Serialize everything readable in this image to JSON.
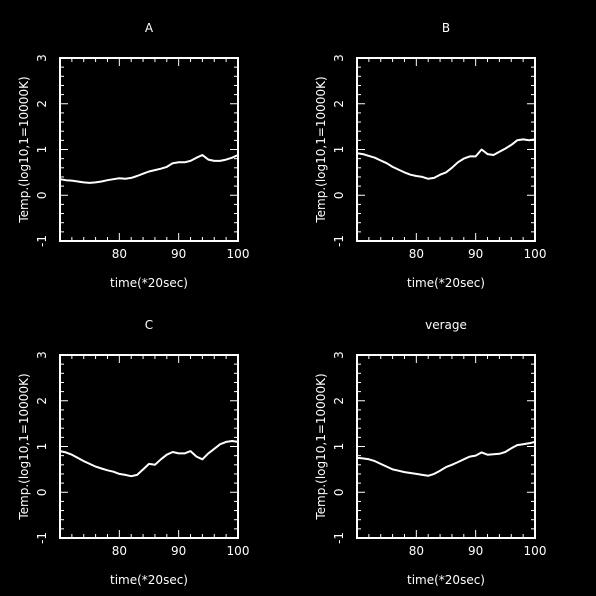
{
  "chart_data": [
    {
      "type": "line",
      "title": "A",
      "xlabel": "time(*20sec)",
      "ylabel": "Temp.(log10,1=10000K)",
      "xlim": [
        70,
        100
      ],
      "ylim": [
        -1,
        3
      ],
      "xticks": [
        80,
        90,
        100
      ],
      "yticks": [
        -1,
        0,
        1,
        2,
        3
      ],
      "colors": {
        "background": "#000000",
        "foreground": "#ffffff"
      },
      "x": [
        70,
        71,
        72,
        73,
        74,
        75,
        76,
        77,
        78,
        79,
        80,
        81,
        82,
        83,
        84,
        85,
        86,
        87,
        88,
        89,
        90,
        91,
        92,
        93,
        94,
        95,
        96,
        97,
        98,
        99,
        100
      ],
      "y": [
        0.35,
        0.33,
        0.32,
        0.3,
        0.28,
        0.27,
        0.28,
        0.3,
        0.33,
        0.35,
        0.37,
        0.36,
        0.38,
        0.42,
        0.47,
        0.52,
        0.55,
        0.58,
        0.62,
        0.7,
        0.72,
        0.72,
        0.75,
        0.82,
        0.88,
        0.78,
        0.75,
        0.75,
        0.78,
        0.82,
        0.88
      ]
    },
    {
      "type": "line",
      "title": "B",
      "xlabel": "time(*20sec)",
      "ylabel": "Temp.(log10,1=10000K)",
      "xlim": [
        70,
        100
      ],
      "ylim": [
        -1,
        3
      ],
      "xticks": [
        80,
        90,
        100
      ],
      "yticks": [
        -1,
        0,
        1,
        2,
        3
      ],
      "colors": {
        "background": "#000000",
        "foreground": "#ffffff"
      },
      "x": [
        70,
        71,
        72,
        73,
        74,
        75,
        76,
        77,
        78,
        79,
        80,
        81,
        82,
        83,
        84,
        85,
        86,
        87,
        88,
        89,
        90,
        91,
        92,
        93,
        94,
        95,
        96,
        97,
        98,
        99,
        100
      ],
      "y": [
        0.92,
        0.9,
        0.86,
        0.82,
        0.76,
        0.7,
        0.62,
        0.56,
        0.5,
        0.45,
        0.42,
        0.4,
        0.36,
        0.38,
        0.45,
        0.5,
        0.6,
        0.72,
        0.8,
        0.85,
        0.85,
        1.0,
        0.9,
        0.88,
        0.95,
        1.02,
        1.1,
        1.2,
        1.22,
        1.2,
        1.22
      ]
    },
    {
      "type": "line",
      "title": "C",
      "xlabel": "time(*20sec)",
      "ylabel": "Temp.(log10,1=10000K)",
      "xlim": [
        70,
        100
      ],
      "ylim": [
        -1,
        3
      ],
      "xticks": [
        80,
        90,
        100
      ],
      "yticks": [
        -1,
        0,
        1,
        2,
        3
      ],
      "colors": {
        "background": "#000000",
        "foreground": "#ffffff"
      },
      "x": [
        70,
        71,
        72,
        73,
        74,
        75,
        76,
        77,
        78,
        79,
        80,
        81,
        82,
        83,
        84,
        85,
        86,
        87,
        88,
        89,
        90,
        91,
        92,
        93,
        94,
        95,
        96,
        97,
        98,
        99,
        100
      ],
      "y": [
        0.9,
        0.87,
        0.82,
        0.75,
        0.68,
        0.62,
        0.56,
        0.52,
        0.48,
        0.45,
        0.4,
        0.38,
        0.35,
        0.38,
        0.5,
        0.62,
        0.6,
        0.72,
        0.82,
        0.88,
        0.85,
        0.85,
        0.9,
        0.78,
        0.72,
        0.85,
        0.95,
        1.05,
        1.1,
        1.12,
        1.1
      ]
    },
    {
      "type": "line",
      "title": "verage",
      "xlabel": "time(*20sec)",
      "ylabel": "Temp.(log10,1=10000K)",
      "xlim": [
        70,
        100
      ],
      "ylim": [
        -1,
        3
      ],
      "xticks": [
        80,
        90,
        100
      ],
      "yticks": [
        -1,
        0,
        1,
        2,
        3
      ],
      "colors": {
        "background": "#000000",
        "foreground": "#ffffff"
      },
      "x": [
        70,
        71,
        72,
        73,
        74,
        75,
        76,
        77,
        78,
        79,
        80,
        81,
        82,
        83,
        84,
        85,
        86,
        87,
        88,
        89,
        90,
        91,
        92,
        93,
        94,
        95,
        96,
        97,
        98,
        99,
        100
      ],
      "y": [
        0.75,
        0.74,
        0.72,
        0.68,
        0.62,
        0.56,
        0.5,
        0.47,
        0.44,
        0.42,
        0.4,
        0.38,
        0.36,
        0.4,
        0.47,
        0.55,
        0.6,
        0.66,
        0.72,
        0.78,
        0.8,
        0.87,
        0.82,
        0.83,
        0.84,
        0.88,
        0.96,
        1.03,
        1.05,
        1.07,
        1.1
      ]
    }
  ]
}
